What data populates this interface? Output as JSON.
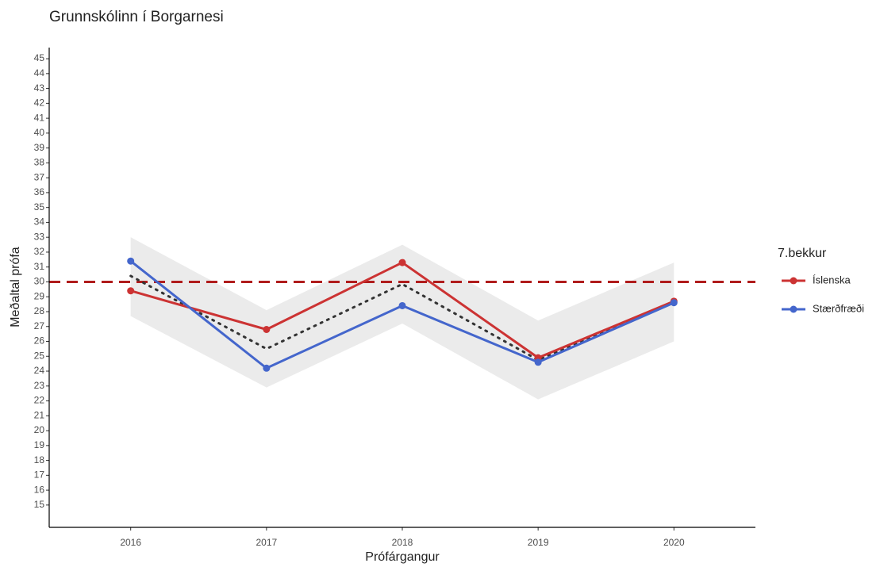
{
  "chart_data": {
    "type": "line",
    "title": "Grunnskólinn í Borgarnesi",
    "x_label": "Prófárgangur",
    "y_label": "Meðaltal prófa",
    "legend_title": "7.bekkur",
    "legend_position": "right",
    "x": [
      2016,
      2017,
      2018,
      2019,
      2020
    ],
    "xlim": [
      2015.4,
      2020.6
    ],
    "xticks": [
      2016,
      2017,
      2018,
      2019,
      2020
    ],
    "ylim": [
      13.5,
      45.75
    ],
    "yticks": [
      15,
      16,
      17,
      18,
      19,
      20,
      21,
      22,
      23,
      24,
      25,
      26,
      27,
      28,
      29,
      30,
      31,
      32,
      33,
      34,
      35,
      36,
      37,
      38,
      39,
      40,
      41,
      42,
      43,
      44,
      45
    ],
    "grid": false,
    "series": [
      {
        "name": "Íslenska",
        "color": "#cc3333",
        "values": [
          29.4,
          26.8,
          31.3,
          24.9,
          28.7
        ]
      },
      {
        "name": "Stærðfræði",
        "color": "#4466cc",
        "values": [
          31.4,
          24.2,
          28.4,
          24.6,
          28.6
        ]
      }
    ],
    "trend": {
      "color": "#333333",
      "values": [
        30.4,
        25.5,
        29.85,
        24.75,
        28.65
      ]
    },
    "ribbon": {
      "color": "#ebebeb",
      "lower": [
        27.7,
        22.9,
        27.2,
        22.1,
        26.0
      ],
      "upper": [
        33.0,
        28.1,
        32.5,
        27.4,
        31.3
      ]
    },
    "reference_line": {
      "value": 30,
      "color": "#b01c1c"
    }
  }
}
